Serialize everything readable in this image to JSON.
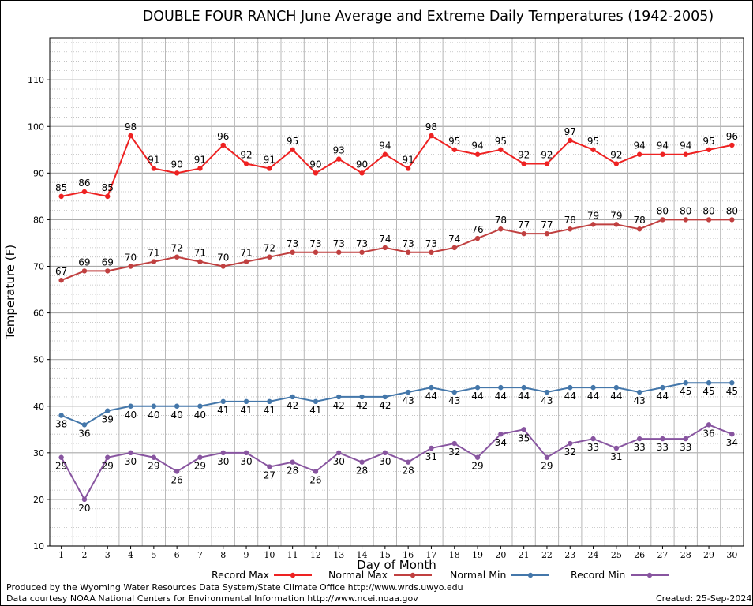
{
  "chart_data": {
    "type": "line",
    "title": "DOUBLE FOUR RANCH June Average and Extreme Daily Temperatures (1942-2005)",
    "xlabel": "Day of Month",
    "ylabel": "Temperature (F)",
    "x": [
      1,
      2,
      3,
      4,
      5,
      6,
      7,
      8,
      9,
      10,
      11,
      12,
      13,
      14,
      15,
      16,
      17,
      18,
      19,
      20,
      21,
      22,
      23,
      24,
      25,
      26,
      27,
      28,
      29,
      30
    ],
    "ylim": [
      10,
      119
    ],
    "yticks": [
      10,
      20,
      30,
      40,
      50,
      60,
      70,
      80,
      90,
      100,
      110
    ],
    "grid": true,
    "legend_placement": "bottom",
    "series": [
      {
        "name": "Record Max",
        "color": "#ee2222",
        "values": [
          85,
          86,
          85,
          98,
          91,
          90,
          91,
          96,
          92,
          91,
          95,
          90,
          93,
          90,
          94,
          91,
          98,
          95,
          94,
          95,
          92,
          92,
          97,
          95,
          92,
          94,
          94,
          94,
          95,
          96
        ]
      },
      {
        "name": "Normal Max",
        "color": "#c04040",
        "values": [
          67,
          69,
          69,
          70,
          71,
          72,
          71,
          70,
          71,
          72,
          73,
          73,
          73,
          73,
          74,
          73,
          73,
          74,
          76,
          78,
          77,
          77,
          78,
          79,
          79,
          78,
          80,
          80,
          80,
          80
        ]
      },
      {
        "name": "Normal Min",
        "color": "#4477aa",
        "values": [
          38,
          36,
          39,
          40,
          40,
          40,
          40,
          41,
          41,
          41,
          42,
          41,
          42,
          42,
          42,
          43,
          44,
          43,
          44,
          44,
          44,
          43,
          44,
          44,
          44,
          43,
          44,
          45,
          45,
          45
        ]
      },
      {
        "name": "Record Min",
        "color": "#8855a0",
        "values": [
          29,
          20,
          29,
          30,
          29,
          26,
          29,
          30,
          30,
          27,
          28,
          26,
          30,
          28,
          30,
          28,
          31,
          32,
          29,
          34,
          35,
          29,
          32,
          33,
          31,
          33,
          33,
          33,
          36,
          34
        ]
      }
    ]
  },
  "credits": {
    "line1": "Produced by the Wyoming Water Resources Data System/State Climate Office http://www.wrds.uwyo.edu",
    "line2": "Data courtesy NOAA National Centers for Environmental Information http://www.ncei.noaa.gov",
    "created": "Created:  25-Sep-2024"
  }
}
